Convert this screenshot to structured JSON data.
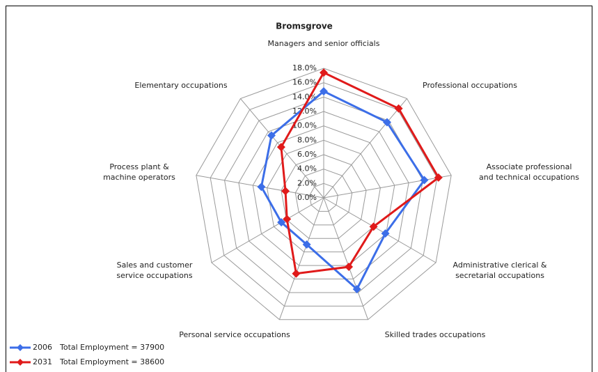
{
  "chart_data": {
    "type": "radar",
    "title": "Bromsgrove",
    "categories": [
      "Managers and senior officials",
      "Professional occupations",
      "Associate professional\nand technical occupations",
      "Administrative clerical &\nsecretarial occupations",
      "Skilled trades occupations",
      "Personal service occupations",
      "Sales and customer\nservice occupations",
      "Process plant &\nmachine operators",
      "Elementary occupations"
    ],
    "series": [
      {
        "name": "2006",
        "note": "Total Employment = 37900",
        "color": "#3c6ee8",
        "values": [
          14.8,
          13.7,
          14.2,
          9.9,
          13.5,
          6.9,
          6.8,
          8.8,
          11.3
        ]
      },
      {
        "name": "2031",
        "note": "Total Employment = 38600",
        "color": "#e01a1a",
        "values": [
          17.4,
          16.2,
          16.2,
          8.0,
          10.2,
          11.2,
          5.9,
          5.4,
          9.2
        ]
      }
    ],
    "ylim": [
      0,
      18
    ],
    "yticks": [
      {
        "value": 0,
        "label": "0.0%"
      },
      {
        "value": 2,
        "label": "2.0%"
      },
      {
        "value": 4,
        "label": "4.0%"
      },
      {
        "value": 6,
        "label": "6.0%"
      },
      {
        "value": 8,
        "label": "8.0%"
      },
      {
        "value": 10,
        "label": "10.0%"
      },
      {
        "value": 12,
        "label": "12.0%"
      },
      {
        "value": 14,
        "label": "14.0%"
      },
      {
        "value": 16,
        "label": "16.0%"
      },
      {
        "value": 18,
        "label": "18.0%"
      }
    ],
    "grid": true
  }
}
